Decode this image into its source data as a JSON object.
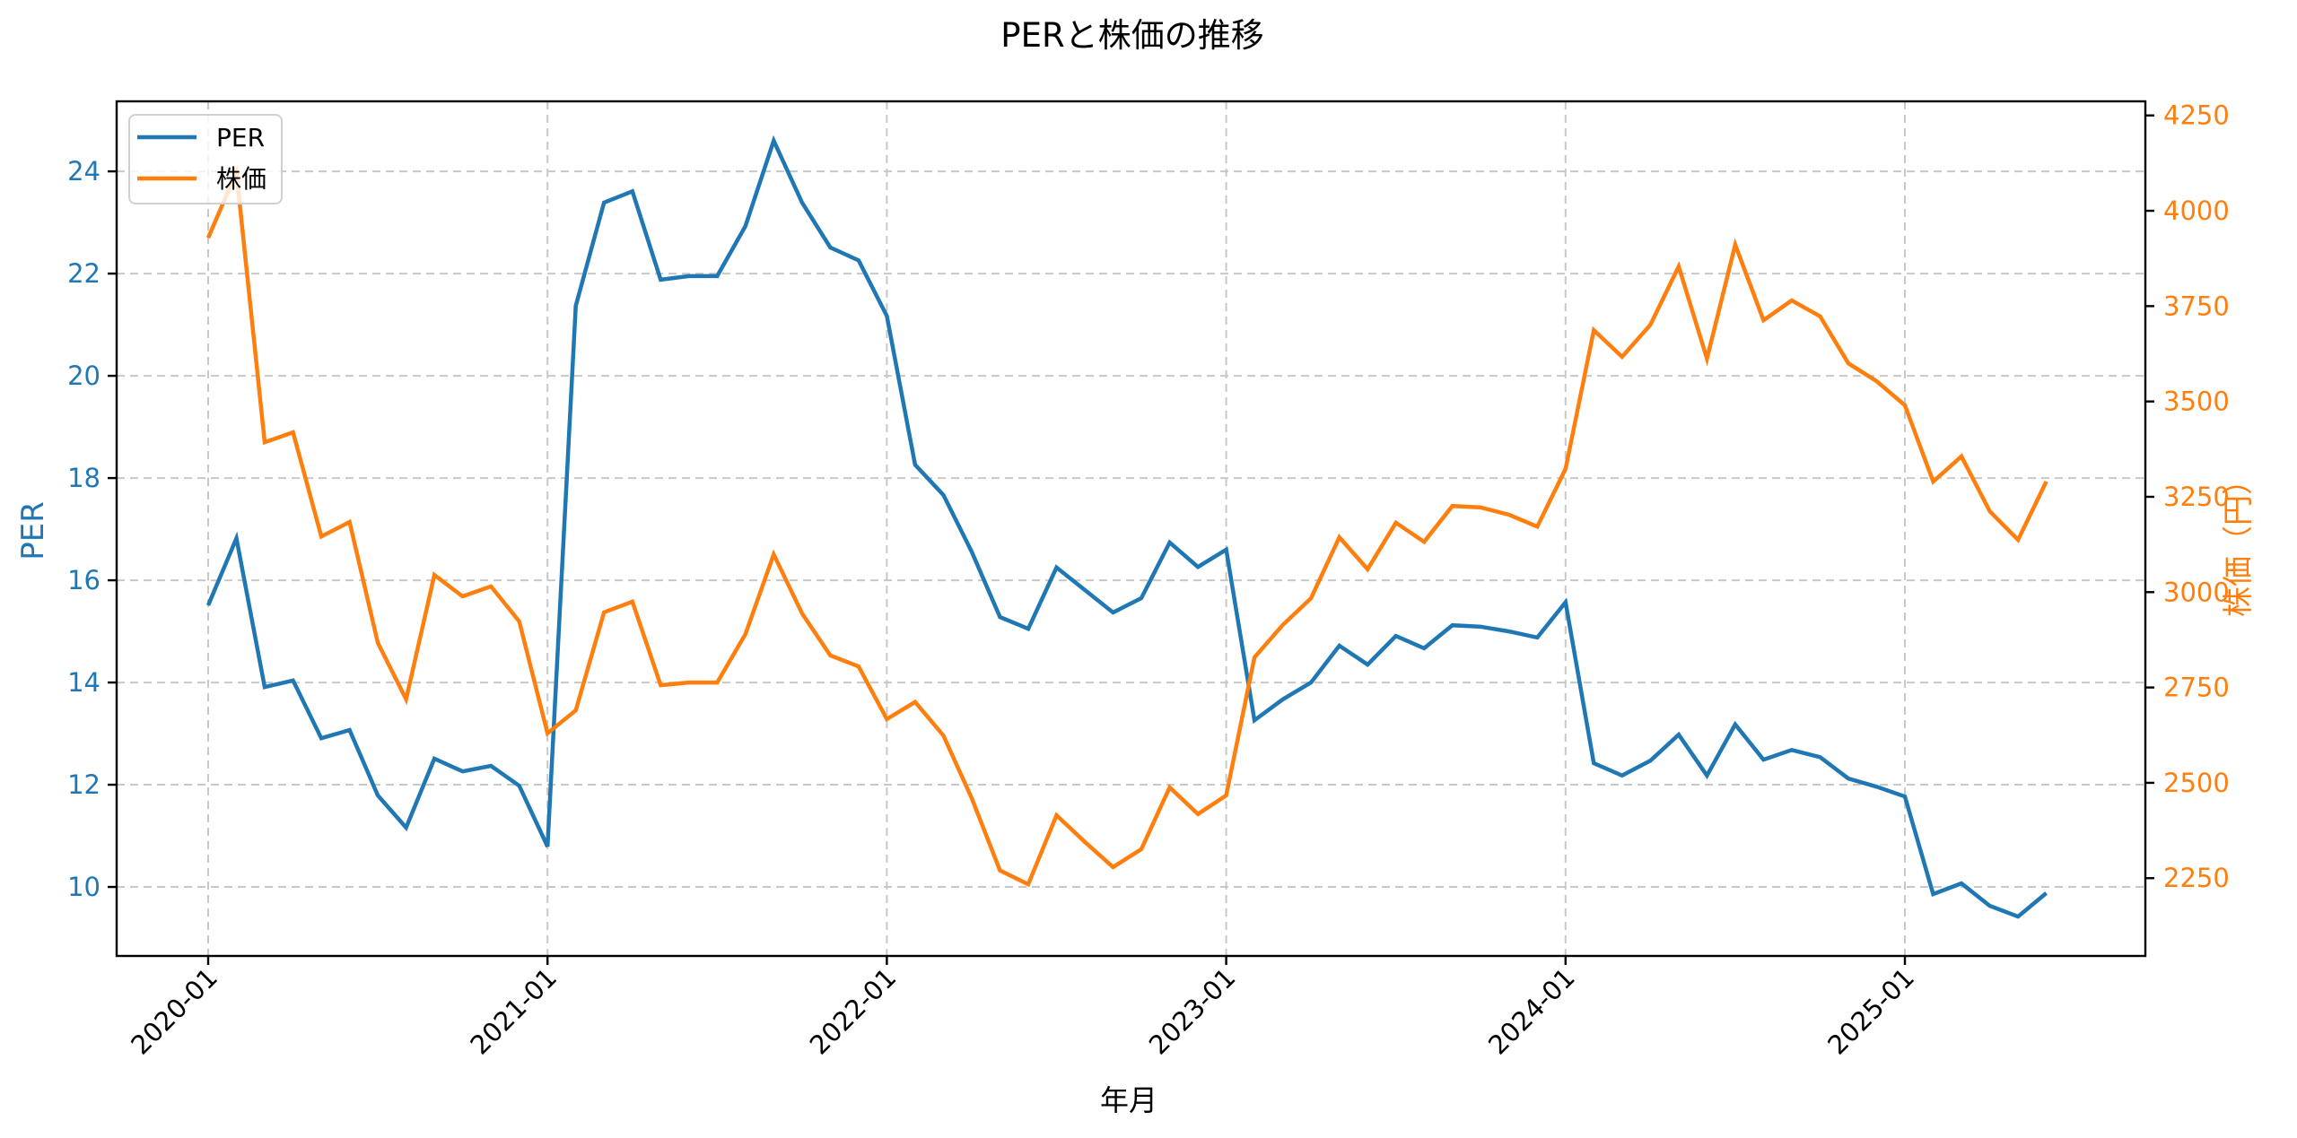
{
  "chart_data": {
    "type": "line",
    "title": "PERと株価の推移",
    "xlabel": "年月",
    "ylabel_left": "PER",
    "ylabel_right": "株価（円）",
    "x": [
      "2020-01",
      "2020-02",
      "2020-03",
      "2020-04",
      "2020-05",
      "2020-06",
      "2020-07",
      "2020-08",
      "2020-09",
      "2020-10",
      "2020-11",
      "2020-12",
      "2021-01",
      "2021-02",
      "2021-03",
      "2021-04",
      "2021-05",
      "2021-06",
      "2021-07",
      "2021-08",
      "2021-09",
      "2021-10",
      "2021-11",
      "2021-12",
      "2022-01",
      "2022-02",
      "2022-03",
      "2022-04",
      "2022-05",
      "2022-06",
      "2022-07",
      "2022-08",
      "2022-09",
      "2022-10",
      "2022-11",
      "2022-12",
      "2023-01",
      "2023-02",
      "2023-03",
      "2023-04",
      "2023-05",
      "2023-06",
      "2023-07",
      "2023-08",
      "2023-09",
      "2023-10",
      "2023-11",
      "2023-12",
      "2024-01",
      "2024-02",
      "2024-03",
      "2024-04",
      "2024-05",
      "2024-06",
      "2024-07",
      "2024-08",
      "2024-09",
      "2024-10",
      "2024-11",
      "2024-12",
      "2025-01",
      "2025-02",
      "2025-03",
      "2025-04",
      "2025-05",
      "2025-06"
    ],
    "series": [
      {
        "name": "PER",
        "axis": "left",
        "color": "#1f77b4",
        "values": [
          15.51,
          16.82,
          13.91,
          14.04,
          12.91,
          13.07,
          11.79,
          11.16,
          12.51,
          12.26,
          12.37,
          11.98,
          10.79,
          21.37,
          23.39,
          23.61,
          21.88,
          21.95,
          21.95,
          22.93,
          24.6,
          23.39,
          22.51,
          22.26,
          21.17,
          18.26,
          17.67,
          16.56,
          15.28,
          15.05,
          16.25,
          15.81,
          15.37,
          15.65,
          16.74,
          16.26,
          16.6,
          13.26,
          13.67,
          14.0,
          14.72,
          14.35,
          14.91,
          14.67,
          15.12,
          15.09,
          15.0,
          14.88,
          15.57,
          12.42,
          12.18,
          12.47,
          12.98,
          12.18,
          13.18,
          12.49,
          12.68,
          12.54,
          12.12,
          11.96,
          11.77,
          9.86,
          10.07,
          9.63,
          9.42,
          9.88
        ]
      },
      {
        "name": "株価",
        "axis": "right",
        "color": "#ff7f0e",
        "values": [
          3929,
          4101,
          3393,
          3419,
          3146,
          3184,
          2867,
          2719,
          3045,
          2989,
          3015,
          2923,
          2630,
          2690,
          2947,
          2975,
          2756,
          2763,
          2763,
          2890,
          3099,
          2944,
          2834,
          2805,
          2667,
          2712,
          2624,
          2460,
          2270,
          2234,
          2415,
          2345,
          2279,
          2326,
          2488,
          2418,
          2467,
          2829,
          2914,
          2984,
          3144,
          3060,
          3182,
          3132,
          3226,
          3222,
          3203,
          3172,
          3323,
          3687,
          3617,
          3701,
          3854,
          3612,
          3911,
          3713,
          3765,
          3723,
          3600,
          3553,
          3490,
          3290,
          3356,
          3212,
          3137,
          3290
        ]
      }
    ],
    "x_ticks": [
      "2020-01",
      "2021-01",
      "2022-01",
      "2023-01",
      "2024-01",
      "2025-01"
    ],
    "y_left_ticks": [
      10,
      12,
      14,
      16,
      18,
      20,
      22,
      24
    ],
    "y_right_ticks": [
      2250,
      2500,
      2750,
      3000,
      3250,
      3500,
      3750,
      4000,
      4250
    ],
    "ylim_left": [
      8.65,
      25.37
    ],
    "ylim_right": [
      2046,
      4287
    ],
    "grid": true,
    "legend_position": "upper left",
    "legend": [
      "PER",
      "株価"
    ]
  }
}
